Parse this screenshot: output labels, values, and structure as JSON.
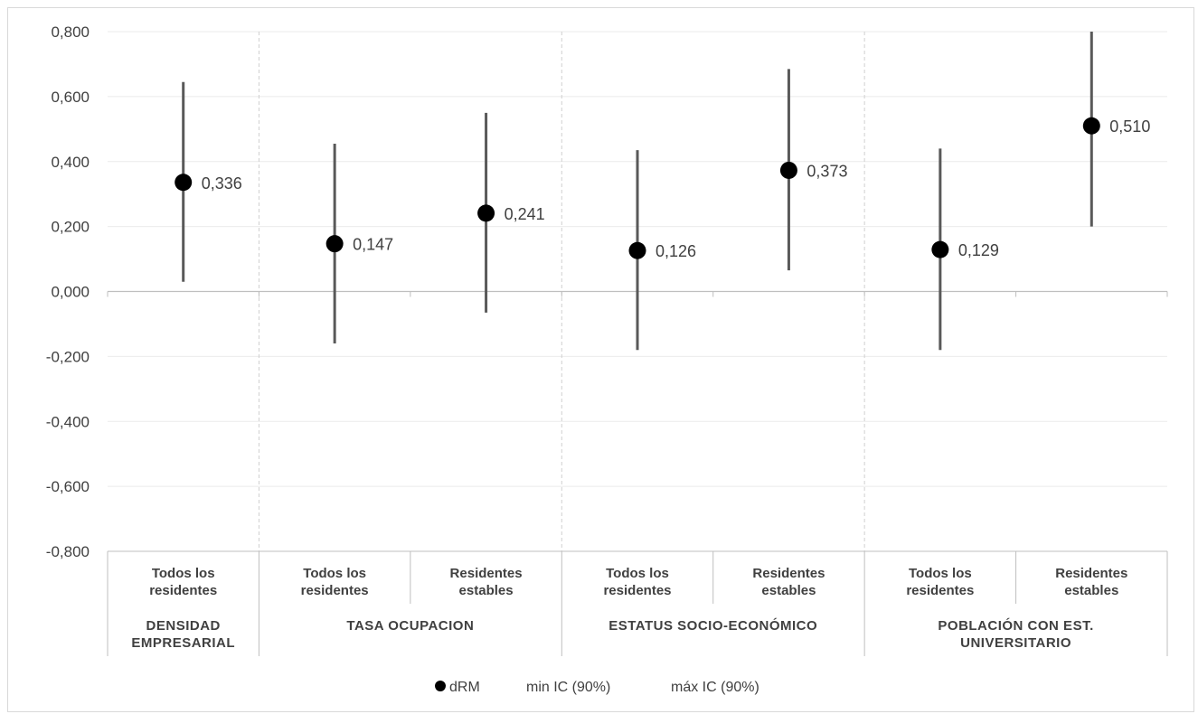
{
  "chart_data": {
    "type": "scatter",
    "title": "",
    "xlabel": "",
    "ylabel": "",
    "ylim": [
      -0.8,
      0.8
    ],
    "yticks": [
      "-0,800",
      "-0,600",
      "-0,400",
      "-0,200",
      "0,000",
      "0,200",
      "0,400",
      "0,600",
      "0,800"
    ],
    "ytick_values": [
      -0.8,
      -0.6,
      -0.4,
      -0.2,
      0.0,
      0.2,
      0.4,
      0.6,
      0.8
    ],
    "grid": true,
    "groups": [
      {
        "label_lines": [
          "DENSIDAD",
          "EMPRESARIAL"
        ],
        "size": 1
      },
      {
        "label_lines": [
          "TASA  OCUPACION"
        ],
        "size": 2
      },
      {
        "label_lines": [
          "ESTATUS  SOCIO-ECONÓMICO"
        ],
        "size": 2
      },
      {
        "label_lines": [
          "POBLACIÓN  CON EST.",
          "UNIVERSITARIO"
        ],
        "size": 2
      }
    ],
    "categories": [
      {
        "lines": [
          "Todos los",
          "residentes"
        ]
      },
      {
        "lines": [
          "Todos los",
          "residentes"
        ]
      },
      {
        "lines": [
          "Residentes",
          "estables"
        ]
      },
      {
        "lines": [
          "Todos los",
          "residentes"
        ]
      },
      {
        "lines": [
          "Residentes",
          "estables"
        ]
      },
      {
        "lines": [
          "Todos los",
          "residentes"
        ]
      },
      {
        "lines": [
          "Residentes",
          "estables"
        ]
      }
    ],
    "series": [
      {
        "name": "dRM",
        "values": [
          0.336,
          0.147,
          0.241,
          0.126,
          0.373,
          0.129,
          0.51
        ],
        "labels": [
          "0,336",
          "0,147",
          "0,241",
          "0,126",
          "0,373",
          "0,129",
          "0,510"
        ]
      },
      {
        "name": "min IC (90%)",
        "values": [
          0.03,
          -0.16,
          -0.065,
          -0.18,
          0.065,
          -0.18,
          0.2
        ]
      },
      {
        "name": "máx IC (90%)",
        "values": [
          0.645,
          0.455,
          0.55,
          0.435,
          0.685,
          0.44,
          0.81
        ]
      }
    ],
    "legend_position": "bottom",
    "colors": {
      "marker": "#000000",
      "errorbar": "#595959",
      "grid": "#ebebeb",
      "axis": "#bfbfbf",
      "text": "#404040"
    }
  }
}
